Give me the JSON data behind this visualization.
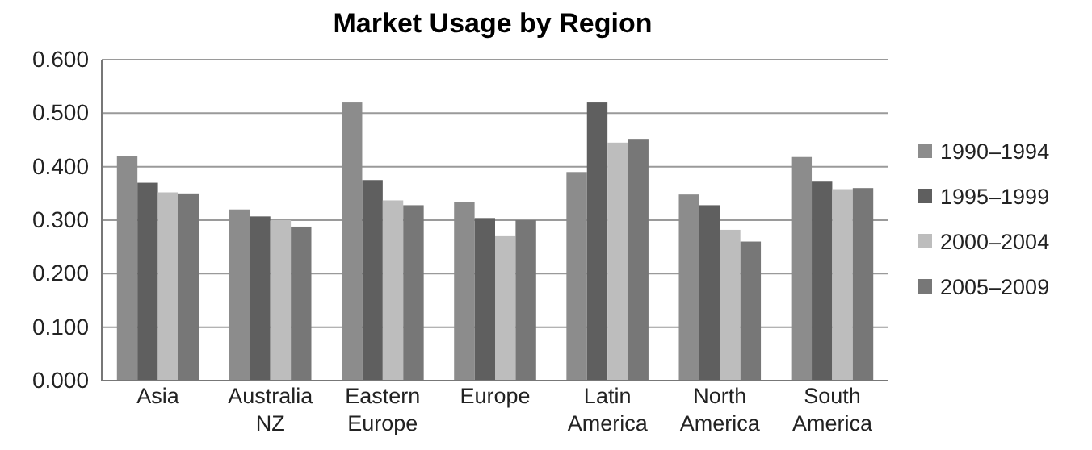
{
  "chart_data": {
    "type": "bar",
    "title": "Market Usage by Region",
    "categories": [
      "Asia",
      "Australia NZ",
      "Eastern Europe",
      "Europe",
      "Latin America",
      "North America",
      "South America"
    ],
    "series": [
      {
        "name": "1990–1994",
        "color": "#8c8c8c",
        "values": [
          0.42,
          0.32,
          0.52,
          0.334,
          0.39,
          0.348,
          0.418
        ]
      },
      {
        "name": "1995–1999",
        "color": "#5f5f5f",
        "values": [
          0.37,
          0.307,
          0.375,
          0.304,
          0.52,
          0.328,
          0.372
        ]
      },
      {
        "name": "2000–2004",
        "color": "#bdbdbd",
        "values": [
          0.352,
          0.3,
          0.337,
          0.27,
          0.445,
          0.282,
          0.358
        ]
      },
      {
        "name": "2005–2009",
        "color": "#777777",
        "values": [
          0.35,
          0.288,
          0.328,
          0.3,
          0.452,
          0.26,
          0.36
        ]
      }
    ],
    "ylim": [
      0,
      0.6
    ],
    "yticks": [
      {
        "value": 0,
        "label": "0.000"
      },
      {
        "value": 0.1,
        "label": "0.100"
      },
      {
        "value": 0.2,
        "label": "0.200"
      },
      {
        "value": 0.3,
        "label": "0.300"
      },
      {
        "value": 0.4,
        "label": "0.400"
      },
      {
        "value": 0.5,
        "label": "0.500"
      },
      {
        "value": 0.6,
        "label": "0.600"
      }
    ],
    "grid": "y",
    "legend": "right"
  }
}
